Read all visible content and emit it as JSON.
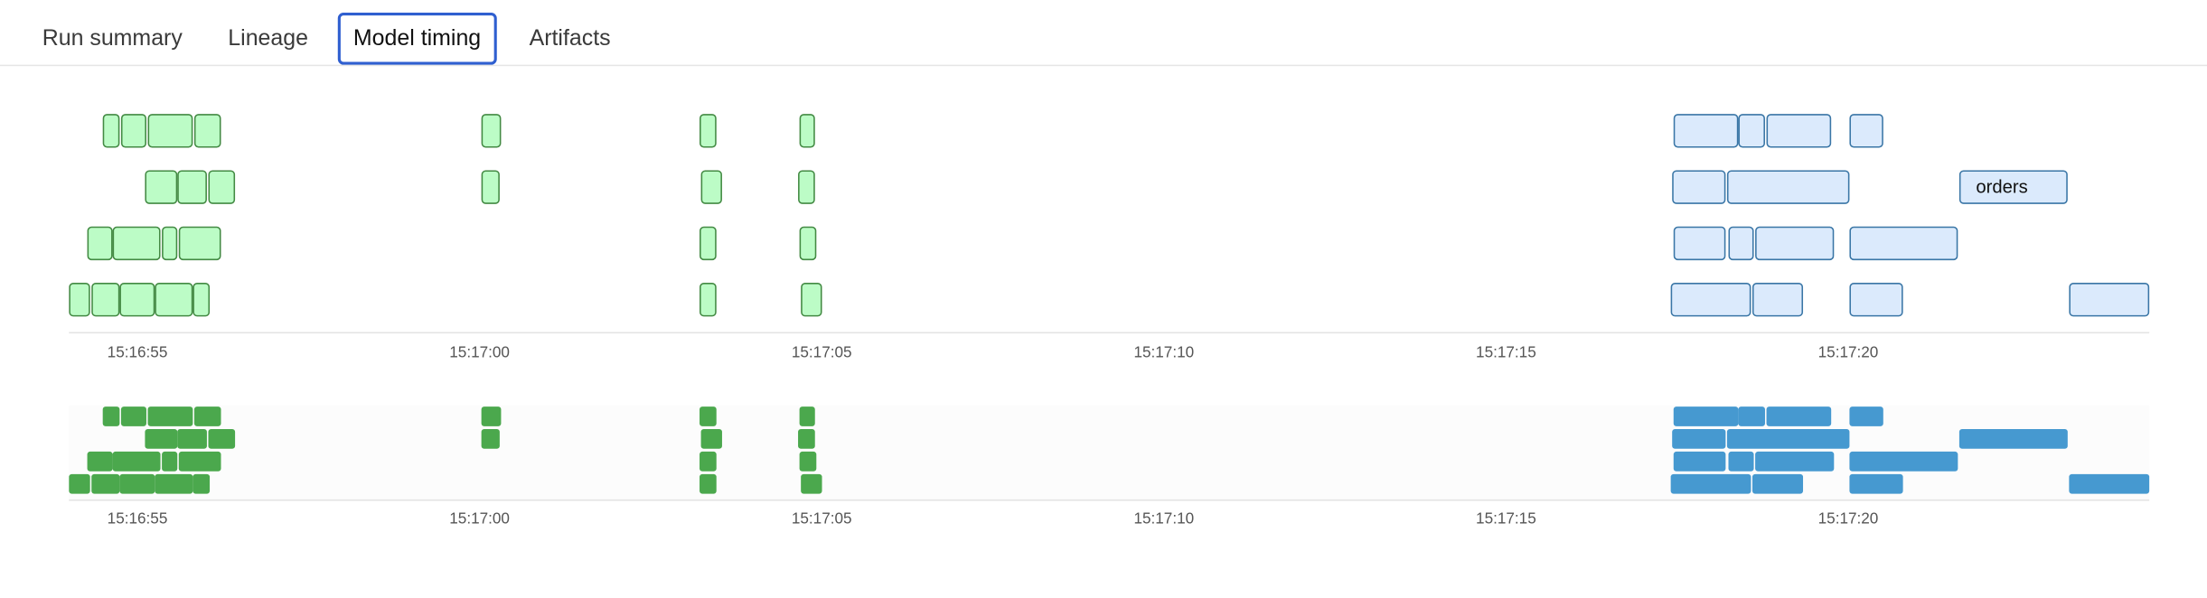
{
  "tabs": [
    {
      "label": "Run summary",
      "active": false
    },
    {
      "label": "Lineage",
      "active": false
    },
    {
      "label": "Model timing",
      "active": true
    },
    {
      "label": "Artifacts",
      "active": false
    }
  ],
  "colors": {
    "green_fill": "#bcfcc6",
    "green_border": "#438a43",
    "blue_fill": "#dbeafc",
    "blue_border": "#3a76a6",
    "mini_green": "#4ba84d",
    "mini_blue": "#4699d0",
    "active_tab_border": "#2f5fd0"
  },
  "chart_data": {
    "type": "timeline",
    "x_axis": {
      "range": [
        "15:16:54.0",
        "15:17:24.4"
      ],
      "ticks": [
        "15:16:55",
        "15:17:00",
        "15:17:05",
        "15:17:10",
        "15:17:15",
        "15:17:20"
      ]
    },
    "rows": [
      {
        "bars": [
          {
            "start": "15:16:54.50",
            "end": "15:16:54.75",
            "color": "green"
          },
          {
            "start": "15:16:54.77",
            "end": "15:16:55.13",
            "color": "green"
          },
          {
            "start": "15:16:55.15",
            "end": "15:16:55.82",
            "color": "green"
          },
          {
            "start": "15:16:55.84",
            "end": "15:16:56.22",
            "color": "green"
          },
          {
            "start": "15:17:00.03",
            "end": "15:17:00.32",
            "color": "green"
          },
          {
            "start": "15:17:03.21",
            "end": "15:17:03.46",
            "color": "green"
          },
          {
            "start": "15:17:04.67",
            "end": "15:17:04.90",
            "color": "green"
          },
          {
            "start": "15:17:17.44",
            "end": "15:17:18.39",
            "color": "blue"
          },
          {
            "start": "15:17:18.40",
            "end": "15:17:18.79",
            "color": "blue"
          },
          {
            "start": "15:17:18.80",
            "end": "15:17:19.76",
            "color": "blue"
          },
          {
            "start": "15:17:20.02",
            "end": "15:17:20.51",
            "color": "blue"
          }
        ]
      },
      {
        "bars": [
          {
            "start": "15:16:55.12",
            "end": "15:16:55.58",
            "color": "green"
          },
          {
            "start": "15:16:55.59",
            "end": "15:16:56.02",
            "color": "green"
          },
          {
            "start": "15:16:56.03",
            "end": "15:16:56.43",
            "color": "green"
          },
          {
            "start": "15:17:00.03",
            "end": "15:17:00.29",
            "color": "green"
          },
          {
            "start": "15:17:03.24",
            "end": "15:17:03.54",
            "color": "green"
          },
          {
            "start": "15:17:04.66",
            "end": "15:17:04.91",
            "color": "green"
          },
          {
            "start": "15:17:17.43",
            "end": "15:17:18.20",
            "color": "blue"
          },
          {
            "start": "15:17:18.23",
            "end": "15:17:20.01",
            "color": "blue"
          },
          {
            "start": "15:17:21.62",
            "end": "15:17:23.21",
            "color": "blue",
            "label": "orders"
          }
        ]
      },
      {
        "bars": [
          {
            "start": "15:16:54.26",
            "end": "15:16:54.63",
            "color": "green"
          },
          {
            "start": "15:16:54.64",
            "end": "15:16:55.34",
            "color": "green"
          },
          {
            "start": "15:16:55.35",
            "end": "15:16:55.59",
            "color": "green"
          },
          {
            "start": "15:16:55.60",
            "end": "15:16:56.22",
            "color": "green"
          },
          {
            "start": "15:17:03.22",
            "end": "15:17:03.46",
            "color": "green"
          },
          {
            "start": "15:17:04.68",
            "end": "15:17:04.92",
            "color": "green"
          },
          {
            "start": "15:17:17.45",
            "end": "15:17:18.21",
            "color": "blue"
          },
          {
            "start": "15:17:18.24",
            "end": "15:17:18.62",
            "color": "blue"
          },
          {
            "start": "15:17:18.64",
            "end": "15:17:19.79",
            "color": "blue"
          },
          {
            "start": "15:17:20.02",
            "end": "15:17:21.61",
            "color": "blue"
          }
        ]
      },
      {
        "bars": [
          {
            "start": "15:16:54.00",
            "end": "15:16:54.31",
            "color": "green"
          },
          {
            "start": "15:16:54.33",
            "end": "15:16:54.74",
            "color": "green"
          },
          {
            "start": "15:16:54.75",
            "end": "15:16:55.25",
            "color": "green"
          },
          {
            "start": "15:16:55.26",
            "end": "15:16:55.81",
            "color": "green"
          },
          {
            "start": "15:16:55.82",
            "end": "15:16:56.06",
            "color": "green"
          },
          {
            "start": "15:17:03.22",
            "end": "15:17:03.47",
            "color": "green"
          },
          {
            "start": "15:17:04.70",
            "end": "15:17:05.01",
            "color": "green"
          },
          {
            "start": "15:17:17.41",
            "end": "15:17:18.58",
            "color": "blue"
          },
          {
            "start": "15:17:18.60",
            "end": "15:17:19.34",
            "color": "blue"
          },
          {
            "start": "15:17:20.02",
            "end": "15:17:20.80",
            "color": "blue"
          },
          {
            "start": "15:17:23.22",
            "end": "15:17:24.40",
            "color": "blue"
          }
        ]
      }
    ]
  }
}
